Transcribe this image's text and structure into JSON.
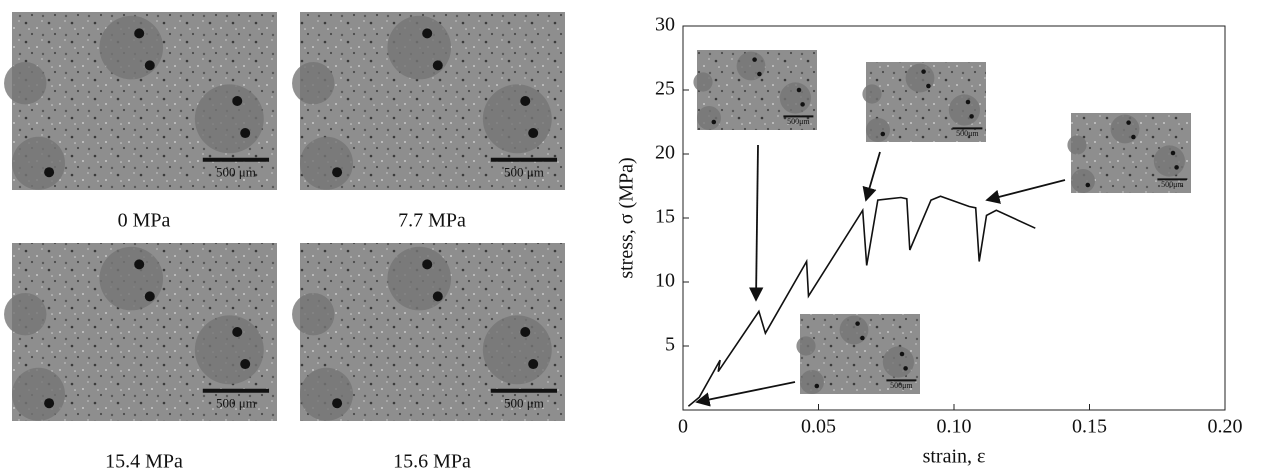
{
  "micrographs": [
    {
      "caption": "0 MPa",
      "scale": "500 μm"
    },
    {
      "caption": "7.7 MPa",
      "scale": "500 μm"
    },
    {
      "caption": "15.4 MPa",
      "scale": "500 μm"
    },
    {
      "caption": "15.6 MPa",
      "scale": "500 μm"
    }
  ],
  "chart_data": {
    "type": "line",
    "x_label": "strain, ε",
    "y_label": "stress, σ (MPa)",
    "x": [
      0.002,
      0.006,
      0.0137,
      0.013,
      0.028,
      0.0304,
      0.0456,
      0.0463,
      0.0663,
      0.0678,
      0.0719,
      0.0804,
      0.0826,
      0.0837,
      0.0915,
      0.095,
      0.1056,
      0.108,
      0.1093,
      0.112,
      0.1156,
      0.13
    ],
    "values": [
      0.3,
      1.0,
      3.9,
      3.0,
      7.7,
      6.0,
      11.6,
      8.9,
      15.6,
      11.3,
      16.4,
      16.6,
      16.5,
      12.5,
      16.4,
      16.7,
      15.9,
      15.8,
      11.6,
      15.2,
      15.6,
      14.2
    ],
    "color": "#111111",
    "xlim": [
      0,
      0.2
    ],
    "ylim": [
      0,
      30
    ],
    "xticks": [
      0,
      0.05,
      {
        "value": 0.1,
        "label": "0.10"
      },
      0.15,
      {
        "value": 0.2,
        "label": "0.20"
      }
    ],
    "yticks": [
      5,
      10,
      15,
      20,
      25,
      30
    ],
    "insets": [
      "500μm",
      "500μm",
      "500μm",
      "500μm"
    ]
  }
}
